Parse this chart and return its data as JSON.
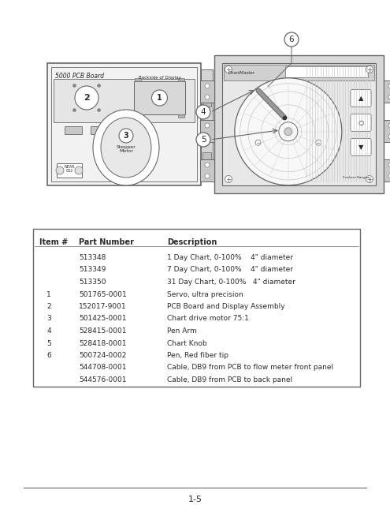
{
  "page_bg": "#ffffff",
  "footer_text": "1-5",
  "table": {
    "header": [
      "Item #",
      "Part Number",
      "Description"
    ],
    "rows": [
      [
        "",
        "513348",
        "1 Day Chart, 0-100%    4\" diameter"
      ],
      [
        "",
        "513349",
        "7 Day Chart, 0-100%    4\" diameter"
      ],
      [
        "",
        "513350",
        "31 Day Chart, 0-100%   4\" diameter"
      ],
      [
        "1",
        "501765-0001",
        "Servo, ultra precision"
      ],
      [
        "2",
        "152017-9001",
        "PCB Board and Display Assembly"
      ],
      [
        "3",
        "501425-0001",
        "Chart drive motor 75:1"
      ],
      [
        "4",
        "528415-0001",
        "Pen Arm"
      ],
      [
        "5",
        "528418-0001",
        "Chart Knob"
      ],
      [
        "6",
        "500724-0002",
        "Pen, Red fiber tip"
      ],
      [
        "",
        "544708-0001",
        "Cable, DB9 from PCB to flow meter front panel"
      ],
      [
        "",
        "544576-0001",
        "Cable, DB9 from PCB to back panel"
      ]
    ]
  },
  "text_color": "#2a2a2a",
  "border_color": "#666666",
  "dark_color": "#444444"
}
